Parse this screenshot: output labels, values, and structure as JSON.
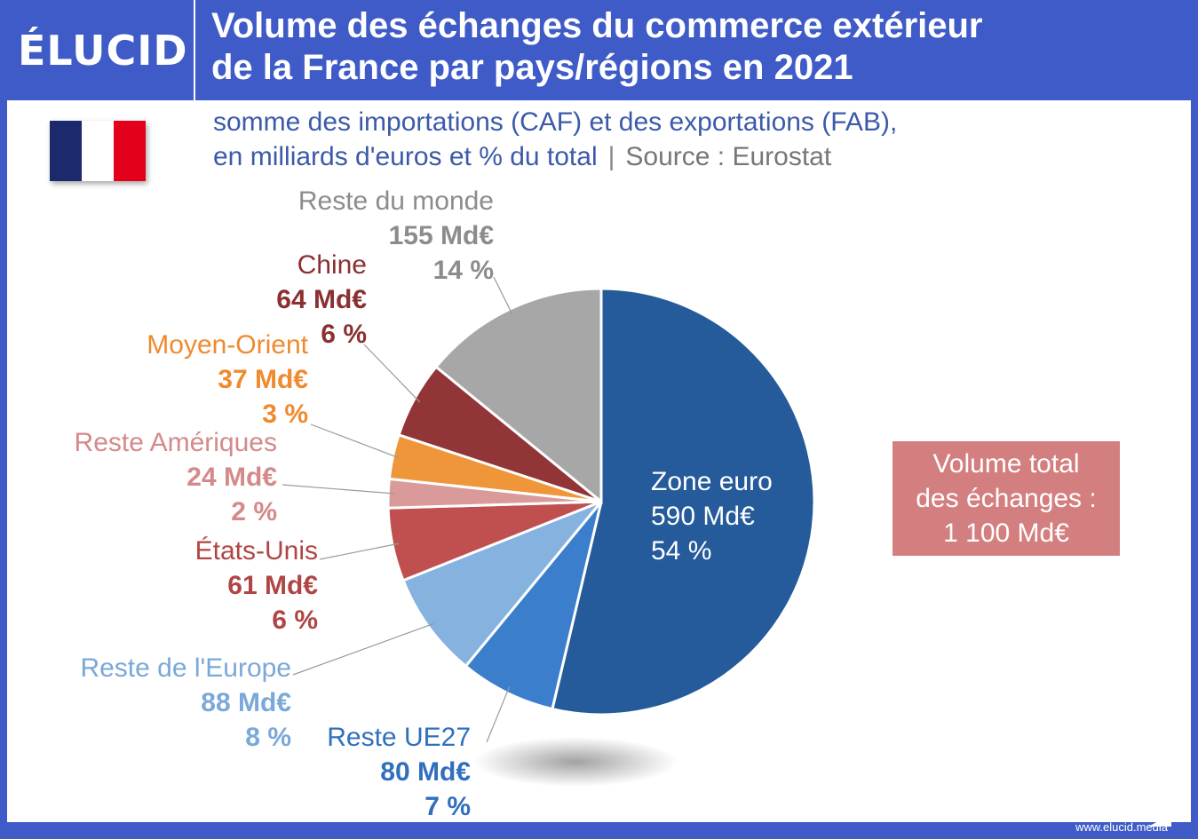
{
  "header": {
    "logo": "ÉLUCID",
    "title_line1": "Volume des échanges du commerce extérieur",
    "title_line2": "de la France par pays/régions en 2021"
  },
  "subtitle": {
    "line1": "somme des importations (CAF) et des exportations (FAB),",
    "line2": "en milliards d'euros et % du total",
    "separator": "|",
    "source": "Source : Eurostat"
  },
  "flag": {
    "colors": [
      "#1a2a6c",
      "#ffffff",
      "#e3001b"
    ]
  },
  "total_box": {
    "line1": "Volume total",
    "line2": "des échanges :",
    "line3": "1 100 Md€",
    "color": "#d47f7f"
  },
  "footer": {
    "url": "www.elucid.media"
  },
  "chart_data": {
    "type": "pie",
    "unit": "Md€",
    "total": 1100,
    "slices": [
      {
        "name": "Zone euro",
        "value": 590,
        "value_label": "590 Md€",
        "percent": 54,
        "percent_label": "54 %",
        "color": "#255b9b",
        "label_color": "#ffffff"
      },
      {
        "name": "Reste UE27",
        "value": 80,
        "value_label": "80 Md€",
        "percent": 7,
        "percent_label": "7 %",
        "color": "#3b7fcc",
        "label_color": "#2f6fbd"
      },
      {
        "name": "Reste de l'Europe",
        "value": 88,
        "value_label": "88 Md€",
        "percent": 8,
        "percent_label": "8 %",
        "color": "#86b2e0",
        "label_color": "#7aa8d8"
      },
      {
        "name": "États-Unis",
        "value": 61,
        "value_label": "61 Md€",
        "percent": 6,
        "percent_label": "6 %",
        "color": "#c05050",
        "label_color": "#b04545"
      },
      {
        "name": "Reste Amériques",
        "value": 24,
        "value_label": "24 Md€",
        "percent": 2,
        "percent_label": "2 %",
        "color": "#da9a9a",
        "label_color": "#d48a8a"
      },
      {
        "name": "Moyen-Orient",
        "value": 37,
        "value_label": "37 Md€",
        "percent": 3,
        "percent_label": "3 %",
        "color": "#f0963a",
        "label_color": "#f08a2e"
      },
      {
        "name": "Chine",
        "value": 64,
        "value_label": "64 Md€",
        "percent": 6,
        "percent_label": "6 %",
        "color": "#923537",
        "label_color": "#8a3032"
      },
      {
        "name": "Reste du monde",
        "value": 155,
        "value_label": "155 Md€",
        "percent": 14,
        "percent_label": "14 %",
        "color": "#a7a7a7",
        "label_color": "#8c8c8c"
      }
    ]
  }
}
